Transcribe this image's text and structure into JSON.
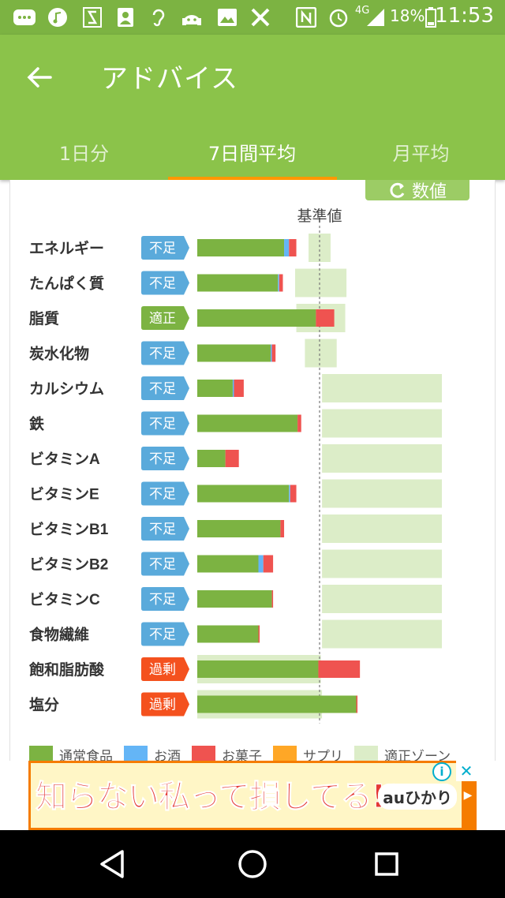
{
  "status_bar": {
    "network": "4G",
    "battery": "18%",
    "time": "11:53"
  },
  "app_bar": {
    "title": "アドバイス",
    "back_icon": "arrow-left-icon"
  },
  "tabs": [
    {
      "label": "1日分",
      "active": false
    },
    {
      "label": "7日間平均",
      "active": true
    },
    {
      "label": "月平均",
      "active": false
    }
  ],
  "numeric_toggle": {
    "label": "数値",
    "icon": "refresh-icon"
  },
  "chart_data": {
    "type": "bar",
    "title": "",
    "reference_label": "基準値",
    "reference_value": 100,
    "xlim": [
      0,
      200
    ],
    "series_names": [
      "通常食品",
      "お酒",
      "お菓子",
      "サプリ",
      "適正ゾーン"
    ],
    "colors": {
      "通常食品": "#7cb342",
      "お酒": "#64b5f6",
      "お菓子": "#ef5350",
      "サプリ": "#ffa726",
      "適正ゾーン": "#dcedc8"
    },
    "categories": [
      "エネルギー",
      "たんぱく質",
      "脂質",
      "炭水化物",
      "カルシウム",
      "鉄",
      "ビタミンA",
      "ビタミンE",
      "ビタミンB1",
      "ビタミンB2",
      "ビタミンC",
      "食物繊維",
      "飽和脂肪酸",
      "塩分"
    ],
    "status": [
      "不足",
      "不足",
      "適正",
      "不足",
      "不足",
      "不足",
      "不足",
      "不足",
      "不足",
      "不足",
      "不足",
      "不足",
      "過剰",
      "過剰"
    ],
    "series": [
      {
        "name": "通常食品",
        "values": [
          71,
          66,
          97,
          60,
          29,
          82,
          23,
          75,
          68,
          50,
          61,
          50,
          99,
          130
        ]
      },
      {
        "name": "お酒",
        "values": [
          4,
          1,
          0,
          1,
          1,
          0,
          0,
          1,
          0,
          4,
          0,
          0,
          0,
          0
        ]
      },
      {
        "name": "お菓子",
        "values": [
          6,
          3,
          15,
          3,
          8,
          3,
          11,
          5,
          3,
          8,
          1,
          1,
          34,
          1
        ]
      },
      {
        "name": "サプリ",
        "values": [
          0,
          0,
          0,
          0,
          0,
          0,
          0,
          0,
          0,
          0,
          0,
          0,
          0,
          0
        ]
      }
    ],
    "appropriate_zone": [
      [
        91,
        109
      ],
      [
        80,
        122
      ],
      [
        81,
        121
      ],
      [
        88,
        114
      ],
      [
        102,
        200
      ],
      [
        102,
        200
      ],
      [
        102,
        200
      ],
      [
        102,
        200
      ],
      [
        102,
        200
      ],
      [
        102,
        200
      ],
      [
        102,
        200
      ],
      [
        102,
        200
      ],
      [
        0,
        101
      ],
      [
        0,
        102
      ]
    ],
    "status_colors": {
      "不足": "#5aaadb",
      "適正": "#7cb342",
      "過剰": "#f4511e"
    }
  },
  "legend": [
    {
      "label": "通常食品",
      "color": "#7cb342"
    },
    {
      "label": "お酒",
      "color": "#64b5f6"
    },
    {
      "label": "お菓子",
      "color": "#ef5350"
    },
    {
      "label": "サプリ",
      "color": "#ffa726"
    },
    {
      "label": "適正ゾーン",
      "color": "#dcedc8"
    }
  ],
  "ad": {
    "headline": "知らない私って損してる!?",
    "brand": "auひかり"
  }
}
